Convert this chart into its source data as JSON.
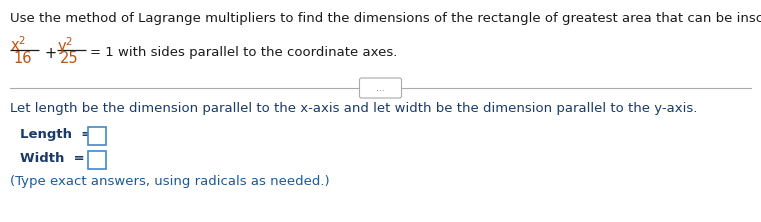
{
  "bg_color": "#ffffff",
  "text_color_black": "#1a1a1a",
  "text_color_blue": "#1a3a6a",
  "text_color_orange": "#c05010",
  "text_color_cyan": "#1a5a9a",
  "text_color_gray": "#888888",
  "line1": "Use the method of Lagrange multipliers to find the dimensions of the rectangle of greatest area that can be inscribed in the ellipse",
  "eq_x2": "x²",
  "eq_16": "16",
  "eq_plus": "+",
  "eq_y2": "y²",
  "eq_25": "25",
  "eq_end": "= 1 with sides parallel to the coordinate axes.",
  "divider_dots": "...",
  "line3": "Let length be the dimension parallel to the x-axis and let width be the dimension parallel to the y-axis.",
  "label_length": "Length  =",
  "label_width": "Width  =",
  "note": "(Type exact answers, using radicals as needed.)",
  "fs_main": 9.5,
  "fs_eq": 10.5,
  "fig_w": 7.61,
  "fig_h": 2.22,
  "dpi": 100
}
